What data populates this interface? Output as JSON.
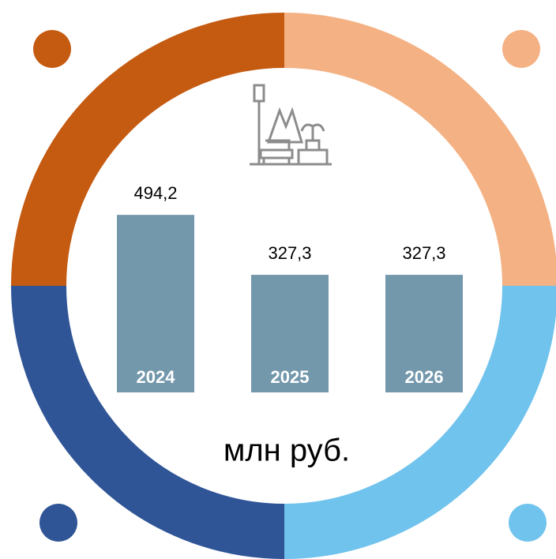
{
  "chart_data": {
    "type": "bar",
    "categories": [
      "2024",
      "2025",
      "2026"
    ],
    "values": [
      494.2,
      327.3,
      327.3
    ],
    "value_labels": [
      "494,2",
      "327,3",
      "327,3"
    ],
    "color": "#7397ab",
    "unit": "млн руб."
  }
}
